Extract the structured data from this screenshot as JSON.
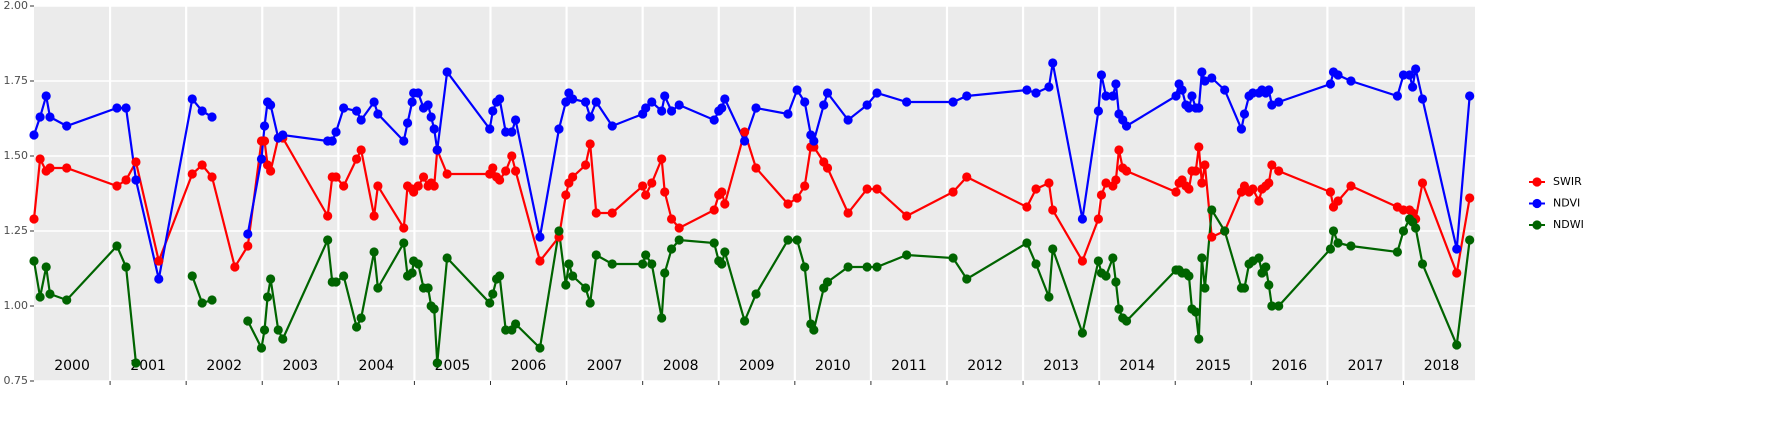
{
  "chart_data": {
    "type": "line",
    "x": [
      2000.0,
      2000.08,
      2000.16,
      2000.21,
      2000.43,
      2001.09,
      2001.21,
      2001.34,
      2001.64,
      2002.08,
      2002.21,
      2002.34,
      2002.64,
      2002.81,
      2002.99,
      2003.03,
      2003.07,
      2003.11,
      2003.21,
      2003.27,
      2003.86,
      2003.92,
      2003.97,
      2004.07,
      2004.24,
      2004.3,
      2004.47,
      2004.52,
      2004.86,
      2004.91,
      2004.97,
      2004.99,
      2005.05,
      2005.12,
      2005.18,
      2005.22,
      2005.26,
      2005.3,
      2005.43,
      2005.99,
      2006.03,
      2006.08,
      2006.12,
      2006.2,
      2006.28,
      2006.33,
      2006.65,
      2006.9,
      2006.99,
      2007.03,
      2007.08,
      2007.25,
      2007.31,
      2007.39,
      2007.6,
      2008.0,
      2008.04,
      2008.12,
      2008.25,
      2008.29,
      2008.38,
      2008.48,
      2008.94,
      2009.0,
      2009.04,
      2009.08,
      2009.34,
      2009.49,
      2009.91,
      2010.03,
      2010.13,
      2010.21,
      2010.25,
      2010.38,
      2010.43,
      2010.7,
      2010.95,
      2011.08,
      2011.47,
      2012.08,
      2012.26,
      2013.05,
      2013.17,
      2013.34,
      2013.39,
      2013.78,
      2013.99,
      2014.03,
      2014.09,
      2014.18,
      2014.22,
      2014.26,
      2014.31,
      2014.36,
      2015.01,
      2015.05,
      2015.09,
      2015.14,
      2015.18,
      2015.22,
      2015.27,
      2015.31,
      2015.35,
      2015.39,
      2015.48,
      2015.65,
      2015.87,
      2015.91,
      2015.97,
      2016.02,
      2016.1,
      2016.14,
      2016.19,
      2016.23,
      2016.27,
      2016.36,
      2017.04,
      2017.08,
      2017.14,
      2017.31,
      2017.92,
      2018.0,
      2018.08,
      2018.12,
      2018.16,
      2018.25,
      2018.7,
      2018.87
    ],
    "series": [
      {
        "name": "SWIR",
        "color": "#ff0000",
        "values": [
          1.29,
          1.49,
          1.45,
          1.46,
          1.46,
          1.4,
          1.42,
          1.48,
          1.15,
          1.44,
          1.47,
          1.43,
          1.13,
          1.2,
          1.55,
          1.55,
          1.47,
          1.45,
          1.56,
          1.56,
          1.3,
          1.43,
          1.43,
          1.4,
          1.49,
          1.52,
          1.3,
          1.4,
          1.26,
          1.4,
          1.39,
          1.38,
          1.4,
          1.43,
          1.4,
          1.41,
          1.4,
          1.52,
          1.44,
          1.44,
          1.46,
          1.43,
          1.42,
          1.45,
          1.5,
          1.45,
          1.15,
          1.23,
          1.37,
          1.41,
          1.43,
          1.47,
          1.54,
          1.31,
          1.31,
          1.4,
          1.37,
          1.41,
          1.49,
          1.38,
          1.29,
          1.26,
          1.32,
          1.37,
          1.38,
          1.34,
          1.58,
          1.46,
          1.34,
          1.36,
          1.4,
          1.53,
          1.53,
          1.48,
          1.46,
          1.31,
          1.39,
          1.39,
          1.3,
          1.38,
          1.43,
          1.33,
          1.39,
          1.41,
          1.32,
          1.15,
          1.29,
          1.37,
          1.41,
          1.4,
          1.42,
          1.52,
          1.46,
          1.45,
          1.38,
          1.41,
          1.42,
          1.4,
          1.39,
          1.45,
          1.45,
          1.53,
          1.41,
          1.47,
          1.23,
          1.25,
          1.38,
          1.4,
          1.38,
          1.39,
          1.35,
          1.39,
          1.4,
          1.41,
          1.47,
          1.45,
          1.38,
          1.33,
          1.35,
          1.4,
          1.33,
          1.32,
          1.32,
          1.31,
          1.29,
          1.41,
          1.11,
          1.36
        ]
      },
      {
        "name": "NDVI",
        "color": "#0000ff",
        "values": [
          1.57,
          1.63,
          1.7,
          1.63,
          1.6,
          1.66,
          1.66,
          1.42,
          1.09,
          1.69,
          1.65,
          1.63,
          null,
          1.24,
          1.49,
          1.6,
          1.68,
          1.67,
          1.56,
          1.57,
          1.55,
          1.55,
          1.58,
          1.66,
          1.65,
          1.62,
          1.68,
          1.64,
          1.55,
          1.61,
          1.68,
          1.71,
          1.71,
          1.66,
          1.67,
          1.63,
          1.59,
          1.52,
          1.78,
          1.59,
          1.65,
          1.68,
          1.69,
          1.58,
          1.58,
          1.62,
          1.23,
          1.59,
          1.68,
          1.71,
          1.69,
          1.68,
          1.63,
          1.68,
          1.6,
          1.64,
          1.66,
          1.68,
          1.65,
          1.7,
          1.65,
          1.67,
          1.62,
          1.65,
          1.66,
          1.69,
          1.55,
          1.66,
          1.64,
          1.72,
          1.68,
          1.57,
          1.55,
          1.67,
          1.71,
          1.62,
          1.67,
          1.71,
          1.68,
          1.68,
          1.7,
          1.72,
          1.71,
          1.73,
          1.81,
          1.29,
          1.65,
          1.77,
          1.7,
          1.7,
          1.74,
          1.64,
          1.62,
          1.6,
          1.7,
          1.74,
          1.72,
          1.67,
          1.66,
          1.7,
          1.66,
          1.66,
          1.78,
          1.75,
          1.76,
          1.72,
          1.59,
          1.64,
          1.7,
          1.71,
          1.71,
          1.72,
          1.71,
          1.72,
          1.67,
          1.68,
          1.74,
          1.78,
          1.77,
          1.75,
          1.7,
          1.77,
          1.77,
          1.73,
          1.79,
          1.69,
          1.19,
          1.7
        ]
      },
      {
        "name": "NDWI",
        "color": "#006400",
        "values": [
          1.15,
          1.03,
          1.13,
          1.04,
          1.02,
          1.2,
          1.13,
          0.81,
          null,
          1.1,
          1.01,
          1.02,
          null,
          0.95,
          0.86,
          0.92,
          1.03,
          1.09,
          0.92,
          0.89,
          1.22,
          1.08,
          1.08,
          1.1,
          0.93,
          0.96,
          1.18,
          1.06,
          1.21,
          1.1,
          1.11,
          1.15,
          1.14,
          1.06,
          1.06,
          1.0,
          0.99,
          0.81,
          1.16,
          1.01,
          1.04,
          1.09,
          1.1,
          0.92,
          0.92,
          0.94,
          0.86,
          1.25,
          1.07,
          1.14,
          1.1,
          1.06,
          1.01,
          1.17,
          1.14,
          1.14,
          1.17,
          1.14,
          0.96,
          1.11,
          1.19,
          1.22,
          1.21,
          1.15,
          1.14,
          1.18,
          0.95,
          1.04,
          1.22,
          1.22,
          1.13,
          0.94,
          0.92,
          1.06,
          1.08,
          1.13,
          1.13,
          1.13,
          1.17,
          1.16,
          1.09,
          1.21,
          1.14,
          1.03,
          1.19,
          0.91,
          1.15,
          1.11,
          1.1,
          1.16,
          1.08,
          0.99,
          0.96,
          0.95,
          1.12,
          1.12,
          1.11,
          1.11,
          1.1,
          0.99,
          0.98,
          0.89,
          1.16,
          1.06,
          1.32,
          1.25,
          1.06,
          1.06,
          1.14,
          1.15,
          1.16,
          1.11,
          1.13,
          1.07,
          1.0,
          1.0,
          1.19,
          1.25,
          1.21,
          1.2,
          1.18,
          1.25,
          1.29,
          1.28,
          1.26,
          1.14,
          0.87,
          1.22
        ]
      }
    ],
    "xlim": [
      2000,
      2018.94
    ],
    "xticks": [
      {
        "value": 2000.5,
        "label": "2000"
      },
      {
        "value": 2001.5,
        "label": "2001"
      },
      {
        "value": 2002.5,
        "label": "2002"
      },
      {
        "value": 2003.5,
        "label": "2003"
      },
      {
        "value": 2004.5,
        "label": "2004"
      },
      {
        "value": 2005.5,
        "label": "2005"
      },
      {
        "value": 2006.5,
        "label": "2006"
      },
      {
        "value": 2007.5,
        "label": "2007"
      },
      {
        "value": 2008.5,
        "label": "2008"
      },
      {
        "value": 2009.5,
        "label": "2009"
      },
      {
        "value": 2010.5,
        "label": "2010"
      },
      {
        "value": 2011.5,
        "label": "2011"
      },
      {
        "value": 2012.5,
        "label": "2012"
      },
      {
        "value": 2013.5,
        "label": "2013"
      },
      {
        "value": 2014.5,
        "label": "2014"
      },
      {
        "value": 2015.5,
        "label": "2015"
      },
      {
        "value": 2016.5,
        "label": "2016"
      },
      {
        "value": 2017.5,
        "label": "2017"
      },
      {
        "value": 2018.5,
        "label": "2018"
      }
    ],
    "xgrid": [
      2001,
      2002,
      2003,
      2004,
      2005,
      2006,
      2007,
      2008,
      2009,
      2010,
      2011,
      2012,
      2013,
      2014,
      2015,
      2016,
      2017,
      2018
    ],
    "ylim": [
      0.75,
      2.0
    ],
    "yticks": [
      {
        "value": 0.75,
        "label": "0.75"
      },
      {
        "value": 1.0,
        "label": "1.00"
      },
      {
        "value": 1.25,
        "label": "1.25"
      },
      {
        "value": 1.5,
        "label": "1.50"
      },
      {
        "value": 1.75,
        "label": "1.75"
      },
      {
        "value": 2.0,
        "label": "2.00"
      }
    ],
    "grid": true,
    "legend": "right"
  }
}
